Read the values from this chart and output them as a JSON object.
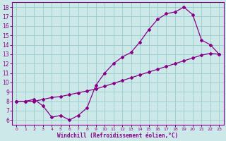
{
  "xlabel": "Windchill (Refroidissement éolien,°C)",
  "bg_color": "#cce8e8",
  "line_color": "#880088",
  "grid_color": "#99cccc",
  "xlim": [
    -0.5,
    23.5
  ],
  "ylim": [
    5.5,
    18.5
  ],
  "xticks": [
    0,
    1,
    2,
    3,
    4,
    5,
    6,
    7,
    8,
    9,
    10,
    11,
    12,
    13,
    14,
    15,
    16,
    17,
    18,
    19,
    20,
    21,
    22,
    23
  ],
  "yticks": [
    6,
    7,
    8,
    9,
    10,
    11,
    12,
    13,
    14,
    15,
    16,
    17,
    18
  ],
  "line1_x": [
    0,
    1,
    2,
    3,
    4,
    5,
    6,
    7,
    8,
    9,
    10,
    11,
    12,
    13,
    14,
    15,
    16,
    17,
    18,
    19,
    20,
    21,
    22,
    23
  ],
  "line1_y": [
    8.0,
    8.0,
    8.0,
    8.2,
    8.4,
    8.5,
    8.7,
    8.9,
    9.1,
    9.3,
    9.6,
    9.9,
    10.2,
    10.5,
    10.8,
    11.1,
    11.4,
    11.7,
    12.0,
    12.3,
    12.6,
    12.9,
    13.1,
    13.0
  ],
  "line2_x": [
    0,
    1,
    2,
    3,
    4,
    5,
    6,
    7,
    8,
    9,
    10,
    11,
    12,
    13,
    14,
    15,
    16,
    17,
    18,
    19,
    20,
    21,
    22,
    23
  ],
  "line2_y": [
    8.0,
    8.0,
    8.2,
    7.5,
    6.3,
    6.5,
    6.0,
    6.5,
    7.3,
    9.7,
    11.0,
    12.0,
    12.7,
    13.2,
    14.3,
    15.6,
    16.7,
    17.3,
    17.5,
    18.0,
    17.2,
    14.5,
    14.0,
    13.0
  ]
}
